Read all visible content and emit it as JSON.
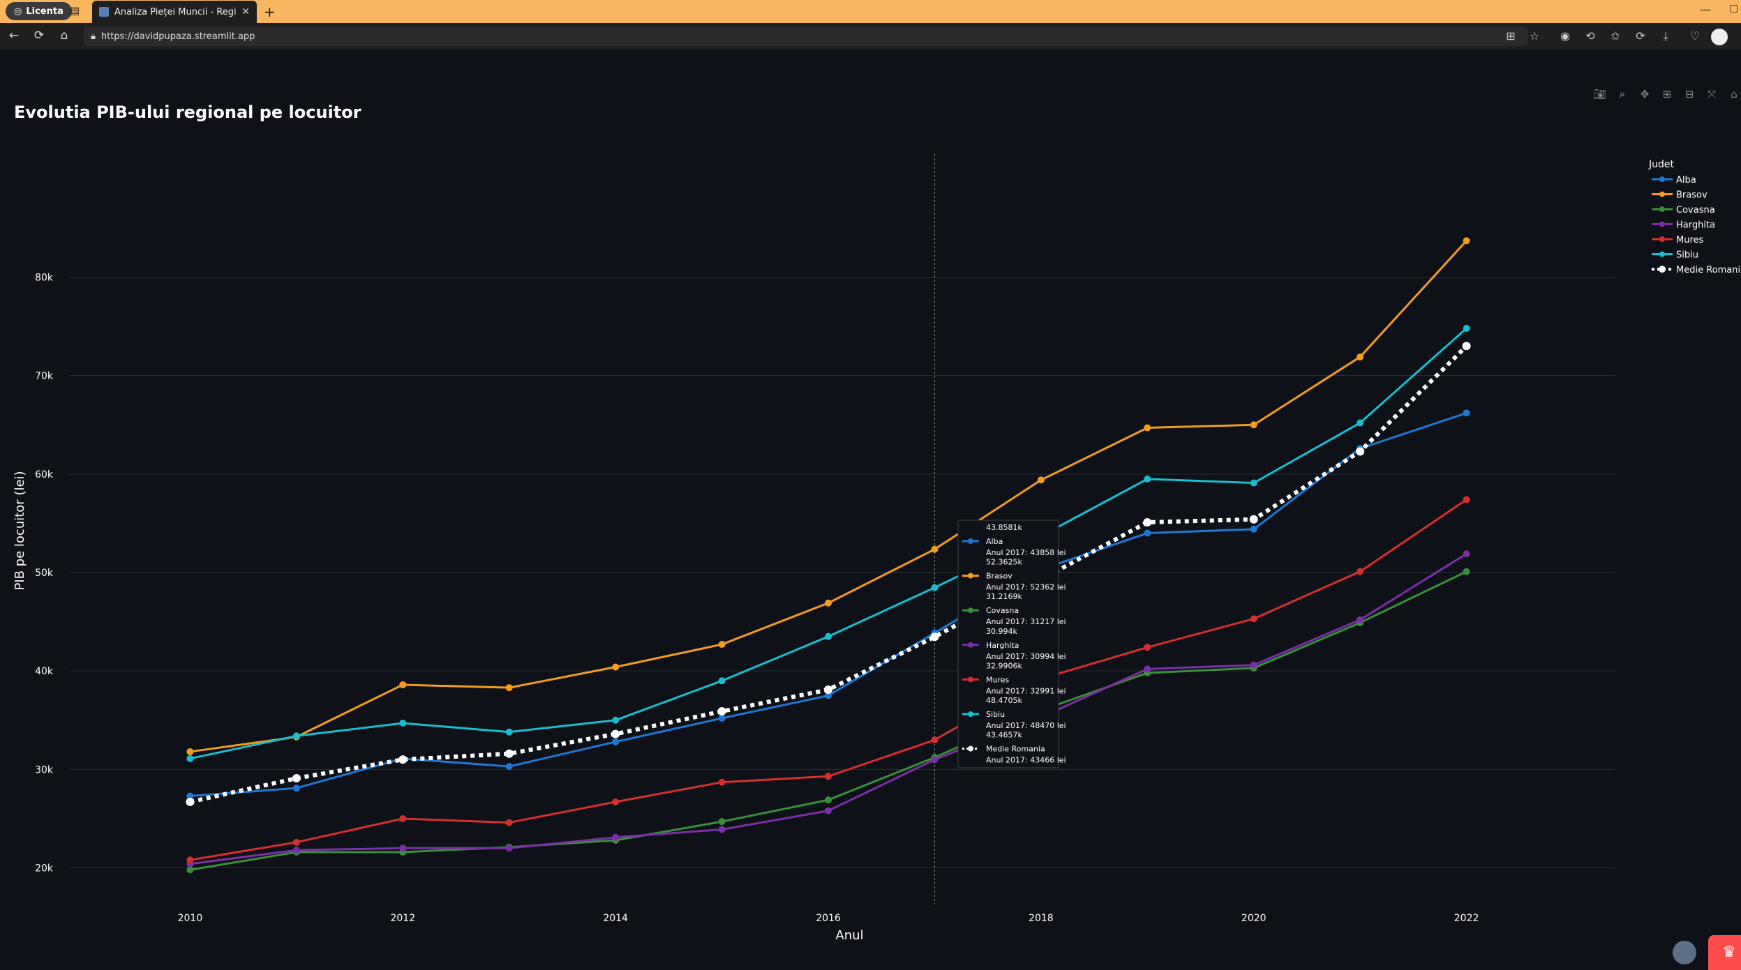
{
  "browser": {
    "profile_tab_label": "Licenta",
    "tab_title": "Analiza Pieței Muncii - Regiunea C",
    "url": "https://davidpupaza.streamlit.app"
  },
  "page": {
    "chart_title": "Evolutia PIB-ului regional pe locuitor"
  },
  "chart_data": {
    "type": "line",
    "title": "Evolutia PIB-ului regional pe locuitor",
    "xlabel": "Anul",
    "ylabel": "PIB pe locuitor (lei)",
    "legend_title": "Judet",
    "legend_position": "right",
    "grid": true,
    "x_ticks": [
      "2010",
      "2012",
      "2014",
      "2016",
      "2018",
      "2020",
      "2022"
    ],
    "y_ticks": [
      "20k",
      "30k",
      "40k",
      "50k",
      "60k",
      "70k",
      "80k"
    ],
    "y_tick_values": [
      20000,
      30000,
      40000,
      50000,
      60000,
      70000,
      80000
    ],
    "xlim": [
      2009,
      2023.4
    ],
    "ylim": [
      16000,
      92500
    ],
    "x": [
      2010,
      2011,
      2012,
      2013,
      2014,
      2015,
      2016,
      2017,
      2018,
      2019,
      2020,
      2021,
      2022
    ],
    "series": [
      {
        "name": "Alba",
        "color": "#1f77d4",
        "dash": false,
        "values": [
          27300,
          28100,
          31100,
          30300,
          32800,
          35200,
          37500,
          43858,
          50300,
          54000,
          54400,
          62600,
          66200
        ]
      },
      {
        "name": "Brasov",
        "color": "#f39c1f",
        "dash": false,
        "values": [
          31800,
          33300,
          38600,
          38300,
          40400,
          42700,
          46900,
          52362,
          59400,
          64700,
          65000,
          71900,
          83700
        ]
      },
      {
        "name": "Covasna",
        "color": "#3a8f3a",
        "dash": false,
        "values": [
          19800,
          21600,
          21600,
          22100,
          22800,
          24700,
          26900,
          31217,
          36000,
          39800,
          40300,
          44900,
          50100
        ]
      },
      {
        "name": "Harghita",
        "color": "#7b2fa8",
        "dash": false,
        "values": [
          20400,
          21800,
          22000,
          22000,
          23100,
          23900,
          25800,
          30994,
          35300,
          40200,
          40600,
          45200,
          51900
        ]
      },
      {
        "name": "Mures",
        "color": "#d62f2f",
        "dash": false,
        "values": [
          20800,
          22600,
          25000,
          24600,
          26700,
          28700,
          29300,
          32991,
          39200,
          42400,
          45300,
          50100,
          57400
        ]
      },
      {
        "name": "Sibiu",
        "color": "#17becf",
        "dash": false,
        "values": [
          31100,
          33400,
          34700,
          33800,
          35000,
          39000,
          43500,
          48470,
          53700,
          59500,
          59100,
          65200,
          74800
        ]
      },
      {
        "name": "Medie Romania",
        "color": "#ffffff",
        "dash": true,
        "values": [
          26700,
          29100,
          31000,
          31600,
          33600,
          35900,
          38100,
          43466,
          49300,
          55100,
          55400,
          62300,
          73000
        ]
      }
    ],
    "hover": {
      "x": 2017,
      "entries": [
        {
          "value_short": "43.8581k",
          "name": "Alba",
          "detail": "Anul 2017: 43858 lei"
        },
        {
          "value_short": "52.3625k",
          "name": "Brasov",
          "detail": "Anul 2017: 52362 lei"
        },
        {
          "value_short": "31.2169k",
          "name": "Covasna",
          "detail": "Anul 2017: 31217 lei"
        },
        {
          "value_short": "30.994k",
          "name": "Harghita",
          "detail": "Anul 2017: 30994 lei"
        },
        {
          "value_short": "32.9906k",
          "name": "Mures",
          "detail": "Anul 2017: 32991 lei"
        },
        {
          "value_short": "48.4705k",
          "name": "Sibiu",
          "detail": "Anul 2017: 48470 lei"
        },
        {
          "value_short": "43.4657k",
          "name": "Medie Romania",
          "detail": "Anul 2017: 43466 lei"
        }
      ]
    }
  },
  "icons": {
    "back": "←",
    "reload": "⟳",
    "home": "⌂",
    "lock": "🔒",
    "camera": "📷",
    "zoom": "🔍",
    "pan": "✥",
    "zoom_in": "⊞",
    "zoom_out": "⊟",
    "autoscale": "⤧",
    "reset": "⌂",
    "fullscreen": "⛶"
  }
}
